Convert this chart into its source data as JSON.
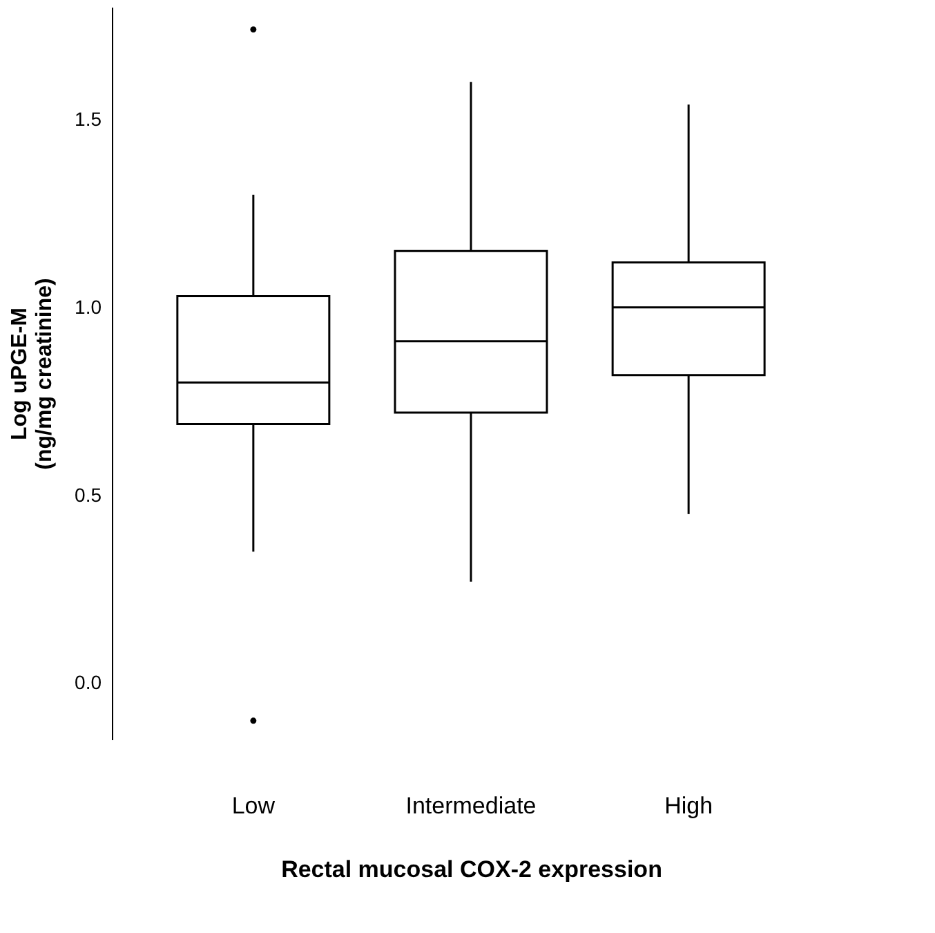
{
  "chart_data": {
    "type": "box",
    "xlabel": "Rectal mucosal COX-2 expression",
    "ylabel": "Log uPGE-M\n(ng/mg creatinine)",
    "categories": [
      "Low",
      "Intermediate",
      "High"
    ],
    "boxes": [
      {
        "low": 0.35,
        "q1": 0.69,
        "median": 0.8,
        "q3": 1.03,
        "high": 1.3,
        "outliers": [
          1.74,
          -0.1
        ]
      },
      {
        "low": 0.27,
        "q1": 0.72,
        "median": 0.91,
        "q3": 1.15,
        "high": 1.6
      },
      {
        "low": 0.45,
        "q1": 0.82,
        "median": 1.0,
        "q3": 1.12,
        "high": 1.54
      }
    ],
    "color": "#000000",
    "ylim": [
      -0.15,
      1.8
    ],
    "yticks": [
      {
        "value": 0,
        "label": "0.0"
      },
      0.5,
      {
        "value": 1,
        "label": "1.0"
      },
      1.5
    ],
    "grid": false
  }
}
